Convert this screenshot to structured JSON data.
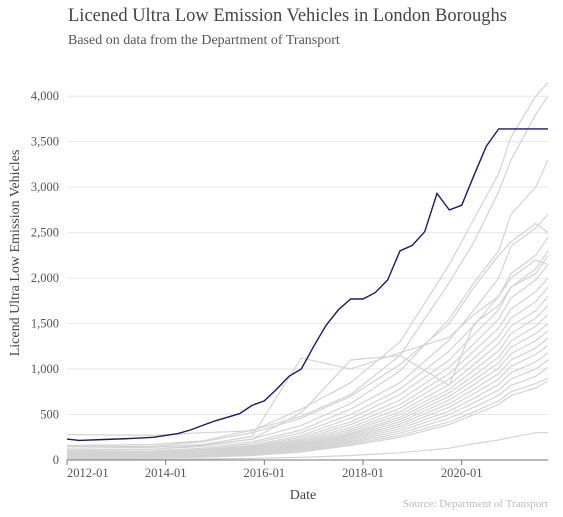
{
  "header": {
    "title": "Licened Ultra Low Emission Vehicles in London Boroughs",
    "subtitle": "Based on data from the Department of Transport"
  },
  "footer": {
    "source": "Source: Department of Transport"
  },
  "colors": {
    "highlight": "#1a1a66",
    "background_series": "#d3d3d3",
    "grid": "#e6e6e6",
    "axis": "#555555"
  },
  "chart_data": {
    "type": "line",
    "title": "Licened Ultra Low Emission Vehicles in London Boroughs",
    "subtitle": "Based on data from the Department of Transport",
    "xlabel": "Date",
    "ylabel": "Licend Ultra Low Emission Vehicles",
    "x_ticks": [
      {
        "label": "2012-01",
        "value": 2012.0
      },
      {
        "label": "2014-01",
        "value": 2014.0
      },
      {
        "label": "2016-01",
        "value": 2016.0
      },
      {
        "label": "2018-01",
        "value": 2018.0
      },
      {
        "label": "2020-01",
        "value": 2020.0
      }
    ],
    "y_ticks": [
      {
        "label": "0",
        "value": 0
      },
      {
        "label": "500",
        "value": 500
      },
      {
        "label": "1,000",
        "value": 1000
      },
      {
        "label": "1,500",
        "value": 1500
      },
      {
        "label": "2,000",
        "value": 2000
      },
      {
        "label": "2,500",
        "value": 2500
      },
      {
        "label": "3,000",
        "value": 3000
      },
      {
        "label": "3,500",
        "value": 3500
      },
      {
        "label": "4,000",
        "value": 4000
      }
    ],
    "xlim": [
      2012.0,
      2021.75
    ],
    "ylim": [
      0,
      4200
    ],
    "grid": "horizontal",
    "legend": "none",
    "highlight_series": {
      "x": [
        2011.75,
        2012.25,
        2012.75,
        2013.25,
        2013.75,
        2014.0,
        2014.25,
        2014.5,
        2014.75,
        2015.0,
        2015.25,
        2015.5,
        2015.75,
        2016.0,
        2016.25,
        2016.5,
        2016.75,
        2017.0,
        2017.25,
        2017.5,
        2017.75,
        2018.0,
        2018.25,
        2018.5,
        2018.75,
        2019.0,
        2019.25,
        2019.5,
        2019.75,
        2020.0,
        2020.25,
        2020.5,
        2020.75,
        2021.0,
        2021.25,
        2021.5,
        2021.75
      ],
      "y": [
        230,
        215,
        225,
        235,
        250,
        270,
        290,
        330,
        380,
        430,
        470,
        510,
        600,
        650,
        780,
        920,
        1000,
        1250,
        1480,
        1650,
        1770,
        1770,
        1840,
        1980,
        2300,
        2360,
        2510,
        2930,
        2750,
        2800,
        3130,
        3450,
        3640,
        3640,
        3640,
        3640,
        3640
      ]
    },
    "background_series": [
      {
        "x": [
          2011.75,
          2013.75,
          2014.75,
          2015.75,
          2016.75,
          2017.75,
          2018.75,
          2019.75,
          2020.25,
          2020.75,
          2021.0,
          2021.5,
          2021.75
        ],
        "y": [
          280,
          270,
          300,
          320,
          560,
          850,
          1300,
          2150,
          2650,
          3150,
          3550,
          4000,
          4150
        ]
      },
      {
        "x": [
          2011.75,
          2013.75,
          2014.75,
          2015.75,
          2016.75,
          2017.75,
          2018.75,
          2019.75,
          2020.25,
          2020.75,
          2021.0,
          2021.5,
          2021.75
        ],
        "y": [
          160,
          170,
          210,
          330,
          480,
          720,
          1150,
          1950,
          2400,
          2950,
          3300,
          3800,
          4000
        ]
      },
      {
        "x": [
          2011.75,
          2013.75,
          2014.75,
          2015.75,
          2016.75,
          2017.75,
          2018.75,
          2019.75,
          2020.25,
          2020.75,
          2021.0,
          2021.5,
          2021.75
        ],
        "y": [
          100,
          120,
          160,
          230,
          380,
          620,
          980,
          1550,
          1950,
          2300,
          2700,
          3000,
          3300
        ]
      },
      {
        "x": [
          2011.75,
          2013.75,
          2014.75,
          2015.75,
          2016.75,
          2017.75,
          2018.75,
          2019.75,
          2020.25,
          2020.75,
          2021.0,
          2021.5,
          2021.75
        ],
        "y": [
          90,
          100,
          130,
          200,
          330,
          560,
          850,
          1320,
          1650,
          2000,
          2350,
          2550,
          2700
        ]
      },
      {
        "x": [
          2011.75,
          2013.75,
          2014.75,
          2015.75,
          2016.75,
          2017.75,
          2018.75,
          2019.75,
          2020.25,
          2020.75,
          2021.0,
          2021.5,
          2021.75
        ],
        "y": [
          80,
          90,
          115,
          180,
          300,
          500,
          780,
          1200,
          1480,
          1800,
          2050,
          2250,
          2450
        ]
      },
      {
        "x": [
          2011.75,
          2013.75,
          2014.75,
          2015.75,
          2016.75,
          2017.75,
          2018.75,
          2019.75,
          2020.25,
          2020.75,
          2021.0,
          2021.5,
          2021.75
        ],
        "y": [
          70,
          80,
          105,
          160,
          270,
          460,
          720,
          1100,
          1380,
          1650,
          1900,
          2100,
          2300
        ]
      },
      {
        "x": [
          2011.75,
          2013.75,
          2014.75,
          2015.75,
          2016.75,
          2017.75,
          2018.75,
          2019.75,
          2020.25,
          2020.75,
          2021.0,
          2021.5,
          2021.75
        ],
        "y": [
          65,
          75,
          100,
          150,
          250,
          420,
          660,
          1020,
          1280,
          1550,
          1780,
          1980,
          2150
        ]
      },
      {
        "x": [
          2011.75,
          2013.75,
          2014.75,
          2015.75,
          2016.75,
          2017.75,
          2018.75,
          2019.75,
          2020.25,
          2020.75,
          2021.0,
          2021.5,
          2021.75
        ],
        "y": [
          60,
          70,
          92,
          140,
          230,
          390,
          610,
          950,
          1200,
          1450,
          1660,
          1850,
          2000
        ]
      },
      {
        "x": [
          2011.75,
          2013.75,
          2014.75,
          2015.75,
          2016.75,
          2017.75,
          2018.75,
          2019.75,
          2020.25,
          2020.75,
          2021.0,
          2021.5,
          2021.75
        ],
        "y": [
          55,
          65,
          85,
          130,
          215,
          360,
          570,
          890,
          1120,
          1360,
          1560,
          1740,
          1900
        ]
      },
      {
        "x": [
          2011.75,
          2013.75,
          2014.75,
          2015.75,
          2016.75,
          2017.75,
          2018.75,
          2019.75,
          2020.25,
          2020.75,
          2021.0,
          2021.5,
          2021.75
        ],
        "y": [
          50,
          60,
          80,
          120,
          200,
          335,
          530,
          830,
          1050,
          1280,
          1470,
          1640,
          1800
        ]
      },
      {
        "x": [
          2011.75,
          2013.75,
          2014.75,
          2015.75,
          2016.75,
          2017.75,
          2018.75,
          2019.75,
          2020.25,
          2020.75,
          2021.0,
          2021.5,
          2021.75
        ],
        "y": [
          48,
          56,
          75,
          112,
          188,
          315,
          500,
          780,
          990,
          1200,
          1390,
          1560,
          1700
        ]
      },
      {
        "x": [
          2011.75,
          2013.75,
          2014.75,
          2015.75,
          2016.75,
          2017.75,
          2018.75,
          2019.75,
          2020.25,
          2020.75,
          2021.0,
          2021.5,
          2021.75
        ],
        "y": [
          45,
          52,
          70,
          105,
          175,
          295,
          470,
          740,
          930,
          1130,
          1310,
          1470,
          1600
        ]
      },
      {
        "x": [
          2011.75,
          2013.75,
          2014.75,
          2015.75,
          2016.75,
          2017.75,
          2018.75,
          2019.75,
          2020.25,
          2020.75,
          2021.0,
          2021.5,
          2021.75
        ],
        "y": [
          42,
          48,
          65,
          98,
          165,
          280,
          445,
          700,
          880,
          1070,
          1240,
          1390,
          1500
        ]
      },
      {
        "x": [
          2011.75,
          2013.75,
          2014.75,
          2015.75,
          2016.75,
          2017.75,
          2018.75,
          2019.75,
          2020.25,
          2020.75,
          2021.0,
          2021.5,
          2021.75
        ],
        "y": [
          40,
          45,
          60,
          92,
          155,
          265,
          420,
          660,
          830,
          1010,
          1170,
          1310,
          1420
        ]
      },
      {
        "x": [
          2011.75,
          2013.75,
          2014.75,
          2015.75,
          2016.75,
          2017.75,
          2018.75,
          2019.75,
          2020.25,
          2020.75,
          2021.0,
          2021.5,
          2021.75
        ],
        "y": [
          38,
          42,
          56,
          86,
          145,
          250,
          395,
          620,
          780,
          950,
          1100,
          1230,
          1340
        ]
      },
      {
        "x": [
          2011.75,
          2013.75,
          2014.75,
          2015.75,
          2016.75,
          2017.75,
          2018.75,
          2019.75,
          2020.25,
          2020.75,
          2021.0,
          2021.5,
          2021.75
        ],
        "y": [
          35,
          40,
          52,
          80,
          135,
          235,
          370,
          580,
          730,
          890,
          1030,
          1160,
          1260
        ]
      },
      {
        "x": [
          2011.75,
          2013.75,
          2014.75,
          2015.75,
          2016.75,
          2017.75,
          2018.75,
          2019.75,
          2020.25,
          2020.75,
          2021.0,
          2021.5,
          2021.75
        ],
        "y": [
          32,
          37,
          48,
          74,
          125,
          220,
          345,
          540,
          680,
          830,
          960,
          1080,
          1180
        ]
      },
      {
        "x": [
          2011.75,
          2013.75,
          2014.75,
          2015.75,
          2016.75,
          2017.75,
          2018.75,
          2019.75,
          2020.25,
          2020.75,
          2021.0,
          2021.5,
          2021.75
        ],
        "y": [
          30,
          34,
          44,
          68,
          115,
          205,
          320,
          500,
          630,
          770,
          890,
          1000,
          1100
        ]
      },
      {
        "x": [
          2011.75,
          2013.75,
          2014.75,
          2015.75,
          2016.75,
          2017.75,
          2018.75,
          2019.75,
          2020.25,
          2020.75,
          2021.0,
          2021.5,
          2021.75
        ],
        "y": [
          28,
          31,
          40,
          62,
          105,
          190,
          295,
          460,
          580,
          710,
          820,
          920,
          1020
        ]
      },
      {
        "x": [
          2011.75,
          2013.75,
          2014.75,
          2015.75,
          2016.75,
          2017.75,
          2018.75,
          2019.75,
          2020.25,
          2020.75,
          2021.0,
          2021.5,
          2021.75
        ],
        "y": [
          25,
          28,
          36,
          56,
          95,
          175,
          270,
          420,
          530,
          650,
          750,
          840,
          900
        ]
      },
      {
        "x": [
          2011.75,
          2013.75,
          2014.75,
          2015.75,
          2016.75,
          2017.75,
          2018.75,
          2019.75,
          2020.25,
          2020.75,
          2021.0,
          2021.5,
          2021.75
        ],
        "y": [
          20,
          24,
          32,
          50,
          88,
          160,
          250,
          390,
          500,
          610,
          710,
          790,
          870
        ]
      },
      {
        "x": [
          2011.75,
          2013.75,
          2014.75,
          2015.75,
          2016.75,
          2017.75,
          2018.75,
          2019.75,
          2020.25,
          2020.75,
          2021.0,
          2021.5,
          2021.75
        ],
        "y": [
          130,
          140,
          170,
          260,
          1120,
          1000,
          1180,
          1350,
          1600,
          1800,
          2000,
          2200,
          2150
        ]
      },
      {
        "x": [
          2011.75,
          2013.75,
          2014.75,
          2015.75,
          2016.75,
          2017.75,
          2018.75,
          2019.75,
          2020.25,
          2020.75,
          2021.0,
          2021.5,
          2021.75
        ],
        "y": [
          110,
          120,
          150,
          230,
          520,
          1100,
          1150,
          820,
          1500,
          1700,
          1900,
          2050,
          2250
        ]
      },
      {
        "x": [
          2011.75,
          2013.75,
          2014.75,
          2015.75,
          2016.75,
          2017.75,
          2018.75,
          2019.75,
          2020.25,
          2020.75,
          2021.0,
          2021.5,
          2021.75
        ],
        "y": [
          150,
          150,
          200,
          300,
          460,
          700,
          1050,
          1500,
          1900,
          2250,
          2400,
          2600,
          2500
        ]
      },
      {
        "x": [
          2011.75,
          2013.75,
          2014.75,
          2015.75,
          2016.75,
          2017.75,
          2018.75,
          2019.75,
          2020.25,
          2020.75,
          2021.0,
          2021.5,
          2021.75
        ],
        "y": [
          10,
          10,
          12,
          18,
          30,
          50,
          80,
          130,
          180,
          220,
          250,
          300,
          300
        ]
      }
    ]
  }
}
